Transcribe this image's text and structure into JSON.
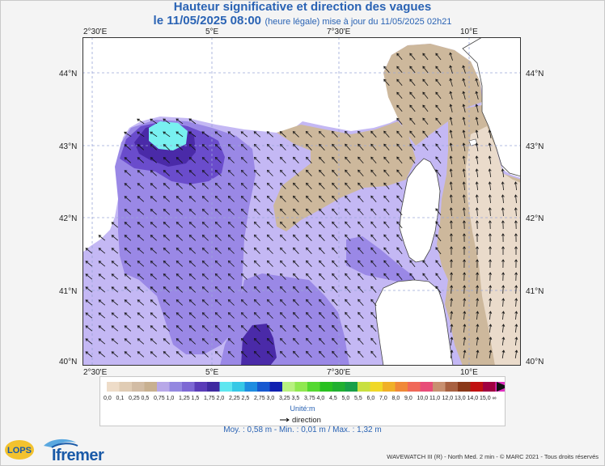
{
  "title_line1": "Hauteur significative et direction des vagues",
  "title_line2_main": "le 11/05/2025 08:00",
  "title_line2_note": "(heure légale) mise à jour du 11/05/2025 02h21",
  "axes": {
    "x_ticks": [
      "2°30'E",
      "5°E",
      "7°30'E",
      "10°E"
    ],
    "y_ticks": [
      "44°N",
      "43°N",
      "42°N",
      "41°N",
      "40°N"
    ]
  },
  "legend": {
    "values": [
      "0,0",
      "0,1",
      "0,25",
      "0,5",
      "0,75",
      "1,0",
      "1,25",
      "1,5",
      "1,75",
      "2,0",
      "2,25",
      "2,5",
      "2,75",
      "3,0",
      "3,25",
      "3,5",
      "3,75",
      "4,0",
      "4,5",
      "5,0",
      "5,5",
      "6,0",
      "7,0",
      "8,0",
      "9,0",
      "10,0",
      "11,0",
      "12,0",
      "13,0",
      "14,0",
      "15,0",
      "∞"
    ],
    "colors": [
      "#eedcc8",
      "#e0ccb4",
      "#d2bca4",
      "#c8b090",
      "#b8a8e8",
      "#9488e0",
      "#7d68d4",
      "#5a3cb8",
      "#3f2aa0",
      "#5ee6f0",
      "#36c8e6",
      "#1e8ce0",
      "#1658d0",
      "#1020b0",
      "#b8f080",
      "#90e850",
      "#54d830",
      "#28c020",
      "#20b030",
      "#18a048",
      "#c8e040",
      "#f0d828",
      "#f0b028",
      "#f08838",
      "#f06858",
      "#e84c78",
      "#c89070",
      "#a86040",
      "#8a3818",
      "#c01010",
      "#a00040",
      "#e030c0"
    ],
    "unit_label": "Unité:m"
  },
  "direction_label": "direction",
  "stats": "Moy. : 0,58 m  -  Min. : 0,01 m / Max. : 1,32 m",
  "credit": "WAVEWATCH III (R) - North Med. 2 min - © MARC 2021 - Tous droits réservés",
  "brand": {
    "ifremer": "Ifremer",
    "lops": "LOPS"
  },
  "map_colors": {
    "sea_light": "#c4b8f4",
    "sea_mid": "#9a88e6",
    "sea_dark": "#6a4ccc",
    "sea_darkest": "#4a2aa8",
    "max_patch": "#78f0f0",
    "calm": "#cdb89c",
    "very_calm": "#eadbcb",
    "land": "#ffffff",
    "grid": "#9aa6d8"
  }
}
